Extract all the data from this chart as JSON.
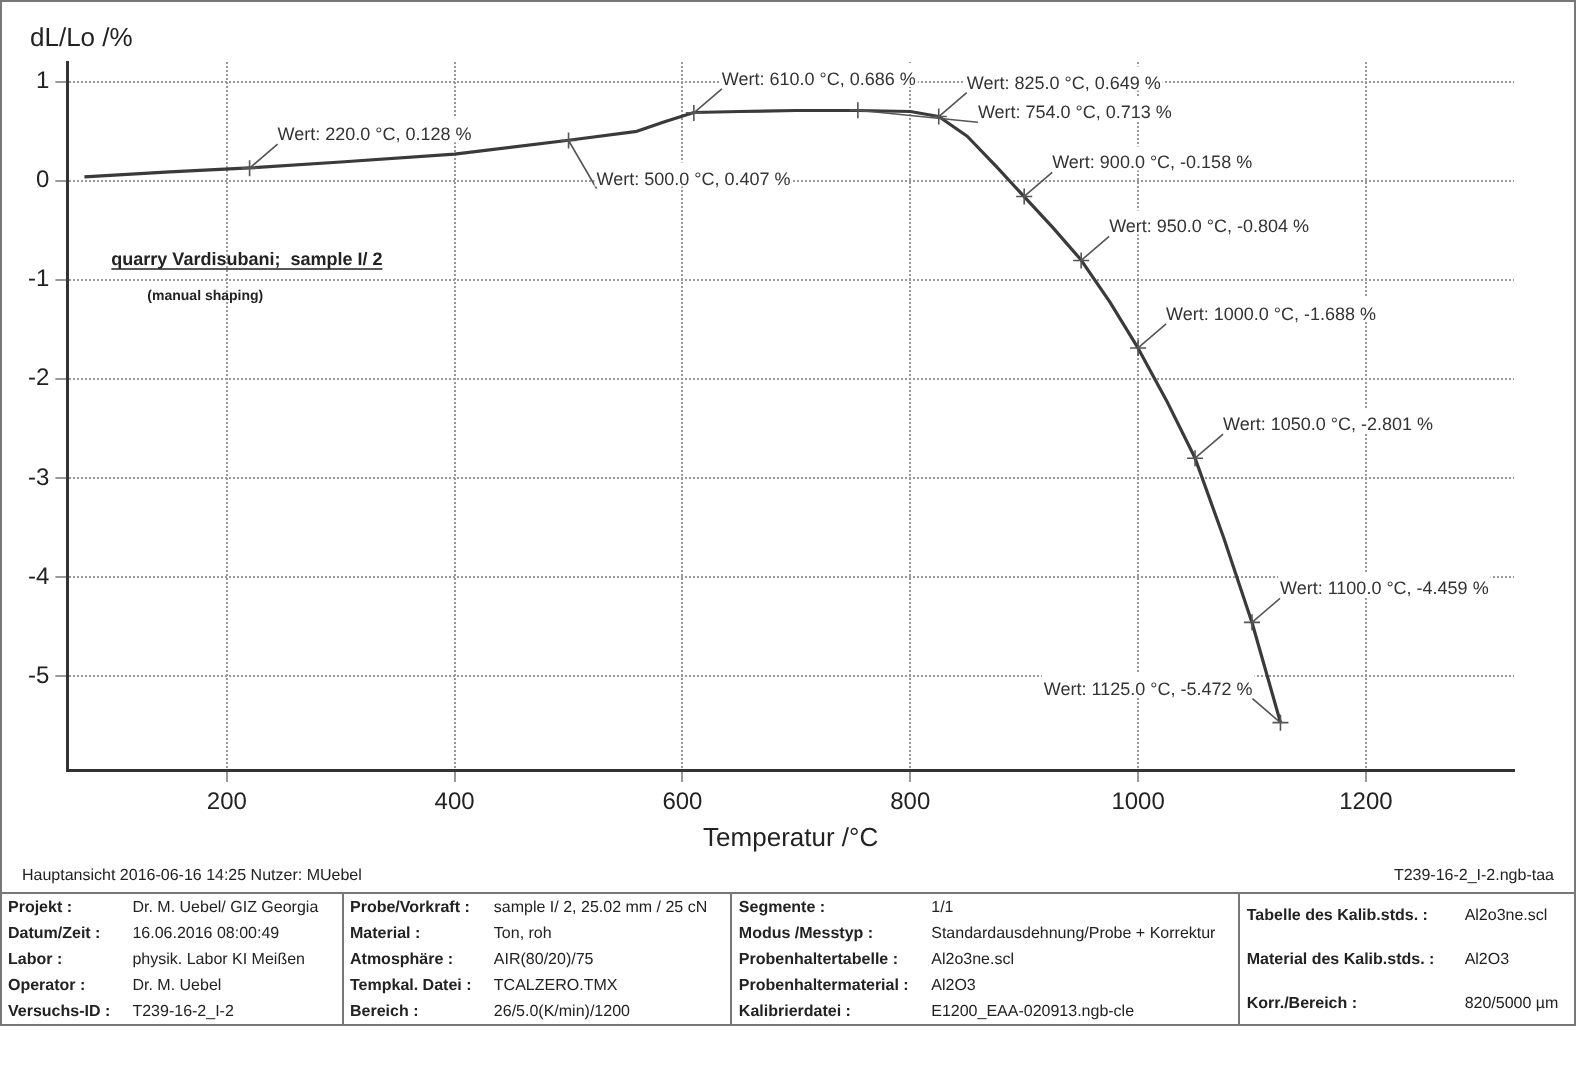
{
  "chart_data": {
    "type": "line",
    "xlabel": "Temperatur /°C",
    "ylabel": "dL/Lo /%",
    "xlim": [
      60,
      1330
    ],
    "ylim": [
      -5.95,
      1.2
    ],
    "xticks": [
      200,
      400,
      600,
      800,
      1000,
      1200
    ],
    "yticks": [
      -5,
      -4,
      -3,
      -2,
      -1,
      0,
      1
    ],
    "grid": true,
    "legend": false,
    "marker": "none",
    "line_style": "solid",
    "series": [
      {
        "color": "#3a3a3a",
        "x": [
          75,
          150,
          220,
          300,
          400,
          500,
          560,
          585,
          610,
          650,
          700,
          754,
          800,
          825,
          850,
          875,
          900,
          925,
          950,
          975,
          1000,
          1025,
          1050,
          1075,
          1100,
          1125
        ],
        "values": [
          0.04,
          0.09,
          0.13,
          0.19,
          0.27,
          0.41,
          0.5,
          0.6,
          0.69,
          0.7,
          0.71,
          0.71,
          0.7,
          0.65,
          0.45,
          0.15,
          -0.16,
          -0.47,
          -0.8,
          -1.22,
          -1.69,
          -2.22,
          -2.8,
          -3.6,
          -4.46,
          -5.47
        ]
      }
    ],
    "annotations": [
      "quarry Vardisubani;  sample I/ 2",
      "(manual shaping)",
      "Hauptansicht  2016-06-16 14:25   Nutzer: MUebel",
      "T239-16-2_I-2.ngb-taa",
      "Projekt :",
      "Dr. M. Uebel/ GIZ Georgia",
      "Datum/Zeit :",
      "16.06.2016 08:00:49",
      "Labor :",
      "physik. Labor  KI Meißen",
      "Operator :",
      "Dr. M. Uebel",
      "Versuchs-ID :",
      "T239-16-2_I-2",
      "Probe/Vorkraft :",
      "sample  I/ 2, 25.02 mm / 25 cN",
      "Material :",
      "Ton, roh",
      "Atmosphäre :",
      "AIR(80/20)/75",
      "Tempkal. Datei :",
      "TCALZERO.TMX",
      "Bereich :",
      "26/5.0(K/min)/1200",
      "Segmente :",
      "1/1",
      "Modus /Messtyp :",
      "Standardausdehnung/Probe + Korrektur",
      "Probenhaltertabelle :",
      "Al2o3ne.scl",
      "Probenhaltermaterial :",
      "Al2O3",
      "Kalibrierdatei :",
      "E1200_EAA-020913.ngb-cle",
      "Tabelle des Kalib.stds. :",
      "Al2o3ne.scl",
      "Material des Kalib.stds. :",
      "Al2O3",
      "Korr./Bereich :",
      "820/5000 µm",
      {
        "text": "Wert: 220.0 °C, 0.128 %",
        "x": 220,
        "y": 0.128
      },
      {
        "text": "Wert: 500.0 °C, 0.407 %",
        "x": 500,
        "y": 0.407
      },
      {
        "text": "Wert: 610.0 °C, 0.686 %",
        "x": 610,
        "y": 0.686
      },
      {
        "text": "Wert: 754.0 °C, 0.713 %",
        "x": 754,
        "y": 0.713
      },
      {
        "text": "Wert: 825.0 °C, 0.649 %",
        "x": 825,
        "y": 0.649
      },
      {
        "text": "Wert: 900.0 °C, -0.158 %",
        "x": 900,
        "y": -0.158
      },
      {
        "text": "Wert: 950.0 °C, -0.804 %",
        "x": 950,
        "y": -0.804
      },
      {
        "text": "Wert: 1000.0 °C, -1.688 %",
        "x": 1000,
        "y": -1.688
      },
      {
        "text": "Wert: 1050.0 °C, -2.801 %",
        "x": 1050,
        "y": -2.801
      },
      {
        "text": "Wert: 1100.0 °C, -4.459 %",
        "x": 1100,
        "y": -4.459
      },
      {
        "text": "Wert: 1125.0 °C, -5.472 %",
        "x": 1125,
        "y": -5.472
      }
    ]
  }
}
